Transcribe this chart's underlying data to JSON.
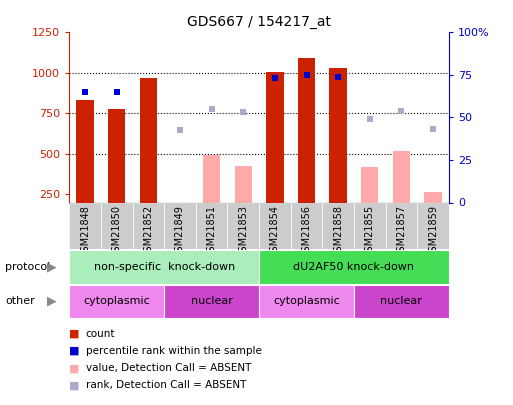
{
  "title": "GDS667 / 154217_at",
  "samples": [
    "GSM21848",
    "GSM21850",
    "GSM21852",
    "GSM21849",
    "GSM21851",
    "GSM21853",
    "GSM21854",
    "GSM21856",
    "GSM21858",
    "GSM21855",
    "GSM21857",
    "GSM21859"
  ],
  "count_values": [
    830,
    780,
    970,
    null,
    null,
    null,
    1005,
    1095,
    1030,
    null,
    null,
    null
  ],
  "count_absent_values": [
    null,
    null,
    null,
    null,
    495,
    425,
    null,
    null,
    null,
    420,
    520,
    265
  ],
  "rank_values": [
    880,
    880,
    null,
    null,
    null,
    null,
    970,
    990,
    975,
    null,
    null,
    null
  ],
  "rank_absent_values": [
    null,
    null,
    null,
    645,
    780,
    760,
    null,
    null,
    null,
    715,
    765,
    655
  ],
  "ylim_left": [
    200,
    1250
  ],
  "ylim_right": [
    0,
    100
  ],
  "left_ticks": [
    250,
    500,
    750,
    1000,
    1250
  ],
  "right_ticks": [
    0,
    25,
    50,
    75,
    100
  ],
  "bar_color_present": "#cc2200",
  "bar_color_absent": "#ffaaaa",
  "dot_color_present": "#0000cc",
  "dot_color_absent": "#aaaacc",
  "protocol_groups": [
    {
      "label": "non-specific  knock-down",
      "start": 0,
      "end": 6,
      "color": "#aaeebb"
    },
    {
      "label": "dU2AF50 knock-down",
      "start": 6,
      "end": 12,
      "color": "#44dd55"
    }
  ],
  "other_groups": [
    {
      "label": "cytoplasmic",
      "start": 0,
      "end": 3,
      "color": "#ee88ee"
    },
    {
      "label": "nuclear",
      "start": 3,
      "end": 6,
      "color": "#cc44cc"
    },
    {
      "label": "cytoplasmic",
      "start": 6,
      "end": 9,
      "color": "#ee88ee"
    },
    {
      "label": "nuclear",
      "start": 9,
      "end": 12,
      "color": "#cc44cc"
    }
  ],
  "legend_items": [
    {
      "label": "count",
      "color": "#cc2200"
    },
    {
      "label": "percentile rank within the sample",
      "color": "#0000cc"
    },
    {
      "label": "value, Detection Call = ABSENT",
      "color": "#ffaaaa"
    },
    {
      "label": "rank, Detection Call = ABSENT",
      "color": "#aaaacc"
    }
  ],
  "left_label_color": "#cc2200",
  "right_label_color": "#0000bb",
  "fig_width": 5.13,
  "fig_height": 4.05,
  "dpi": 100
}
